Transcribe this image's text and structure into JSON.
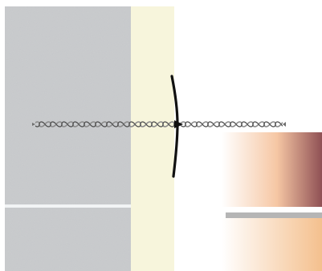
{
  "figure": {
    "kind": "wall-anchor-cross-section",
    "layers": [
      {
        "name": "masonry-wall",
        "fill": "#c9cbcd",
        "texture": "concrete-speckle"
      },
      {
        "name": "insulation-layer",
        "fill": "#f7f5dc"
      },
      {
        "name": "air-gap",
        "fill": "#ffffff"
      },
      {
        "name": "facing-brick-upper",
        "fill_from": "#ffffff",
        "fill_mid": "#f6c7a4",
        "fill_to": "#8f5054"
      },
      {
        "name": "mortar-joint",
        "fill": "#b5b5b5"
      },
      {
        "name": "facing-brick-lower",
        "fill_from": "#ffffff",
        "fill_to": "#f4c08e"
      }
    ],
    "anchor": {
      "name": "twisted-wall-tie",
      "color": "#6f6f6f"
    },
    "retaining_disc": {
      "name": "drip-disc",
      "color": "#111111"
    },
    "colors": {
      "background": "#ffffff",
      "mortar_line": "#f2f4f5"
    }
  }
}
